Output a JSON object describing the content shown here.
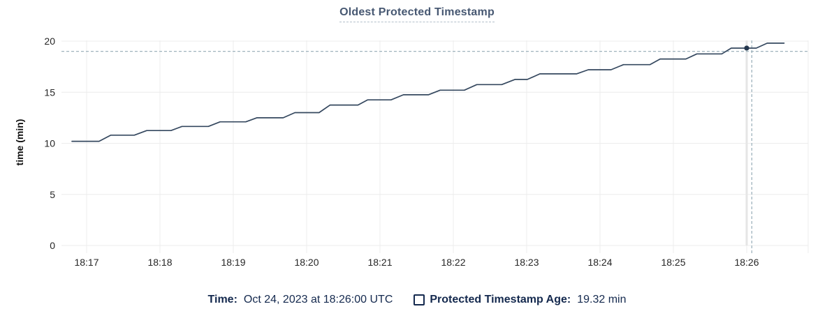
{
  "chart_data": {
    "type": "line",
    "title": "Oldest Protected Timestamp",
    "ylabel": "time (min)",
    "xlabel": "",
    "ylim": [
      0,
      20
    ],
    "yticks": [
      0,
      5,
      10,
      15,
      20
    ],
    "xtick_labels": [
      "18:17",
      "18:18",
      "18:19",
      "18:20",
      "18:21",
      "18:22",
      "18:23",
      "18:24",
      "18:25",
      "18:26"
    ],
    "x_range_minutes_from_1817": [
      -0.34,
      9.84
    ],
    "grid": "on",
    "legend_position": "bottom",
    "series": [
      {
        "name": "Protected Timestamp Age",
        "unit": "min",
        "points": [
          [
            -0.2,
            10.2
          ],
          [
            0.17,
            10.2
          ],
          [
            0.33,
            10.8
          ],
          [
            0.65,
            10.8
          ],
          [
            0.82,
            11.25
          ],
          [
            1.15,
            11.25
          ],
          [
            1.3,
            11.65
          ],
          [
            1.66,
            11.65
          ],
          [
            1.82,
            12.1
          ],
          [
            2.17,
            12.1
          ],
          [
            2.32,
            12.5
          ],
          [
            2.68,
            12.5
          ],
          [
            2.84,
            13.0
          ],
          [
            3.17,
            13.0
          ],
          [
            3.32,
            13.75
          ],
          [
            3.7,
            13.75
          ],
          [
            3.83,
            14.25
          ],
          [
            4.15,
            14.25
          ],
          [
            4.32,
            14.75
          ],
          [
            4.66,
            14.75
          ],
          [
            4.82,
            15.2
          ],
          [
            5.15,
            15.2
          ],
          [
            5.32,
            15.75
          ],
          [
            5.66,
            15.75
          ],
          [
            5.84,
            16.25
          ],
          [
            6.01,
            16.25
          ],
          [
            6.18,
            16.8
          ],
          [
            6.68,
            16.8
          ],
          [
            6.84,
            17.2
          ],
          [
            7.15,
            17.2
          ],
          [
            7.32,
            17.7
          ],
          [
            7.68,
            17.7
          ],
          [
            7.82,
            18.25
          ],
          [
            8.17,
            18.25
          ],
          [
            8.32,
            18.75
          ],
          [
            8.66,
            18.75
          ],
          [
            8.79,
            19.32
          ],
          [
            9.13,
            19.32
          ],
          [
            9.28,
            19.8
          ],
          [
            9.51,
            19.8
          ]
        ]
      }
    ],
    "hover": {
      "point": {
        "t_minutes_from_1817": 9.0,
        "value": 19.32
      },
      "crosshair": {
        "t_minutes_from_1817": 9.07,
        "value": 19.0
      },
      "highlighted_xtick": "18:26"
    },
    "legend": {
      "time_label": "Time:",
      "time_value": "Oct 24, 2023 at 18:26:00 UTC",
      "series_label": "Protected Timestamp Age:",
      "series_value": "19.32 min"
    },
    "colors": {
      "line": "#35485f",
      "dot": "#24374e",
      "title_text": "#475872",
      "title_underline": "#b3bfca",
      "legend_text": "#14294e",
      "grid": "#ececec",
      "grid_highlight": "#e6e6e6",
      "crosshair": "#9fb3bd",
      "tick_text": "#262626",
      "axis_label_text": "#111111",
      "background": "#ffffff"
    }
  }
}
